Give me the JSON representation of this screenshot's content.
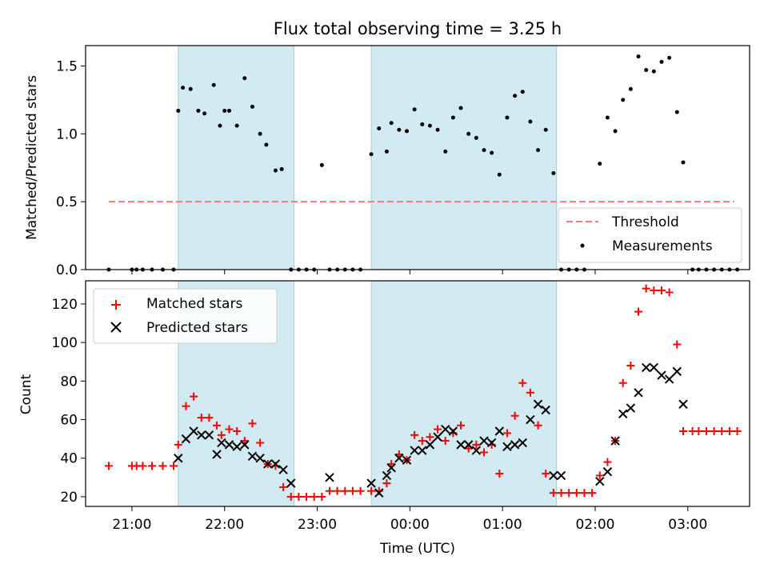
{
  "chart_data": {
    "title": "Flux total observing time = 3.25 h",
    "xlabel": "Time (UTC)",
    "x_ticks": [
      "21:00",
      "22:00",
      "23:00",
      "00:00",
      "01:00",
      "02:00",
      "03:00"
    ],
    "shaded_intervals": [
      [
        "21:30",
        "22:45"
      ],
      [
        "23:35",
        "01:35"
      ]
    ],
    "shade_color": "#add8e6",
    "top": {
      "type": "scatter",
      "ylabel": "Matched/Predicted stars",
      "ylim": [
        0,
        1.65
      ],
      "y_ticks": [
        "0.0",
        "0.5",
        "1.0",
        "1.5"
      ],
      "threshold": {
        "name": "Threshold",
        "value": 0.5,
        "x_range": [
          "20:45",
          "03:30"
        ],
        "color": "#ff7777"
      },
      "measurements": {
        "name": "Measurements",
        "color": "#000000",
        "points": [
          [
            "20:45",
            0.0
          ],
          [
            "21:00",
            0.0
          ],
          [
            "21:03",
            0.0
          ],
          [
            "21:07",
            0.0
          ],
          [
            "21:13",
            0.0
          ],
          [
            "21:20",
            0.0
          ],
          [
            "21:27",
            0.0
          ],
          [
            "21:30",
            1.17
          ],
          [
            "21:33",
            1.34
          ],
          [
            "21:38",
            1.33
          ],
          [
            "21:43",
            1.17
          ],
          [
            "21:47",
            1.15
          ],
          [
            "21:53",
            1.36
          ],
          [
            "21:57",
            1.06
          ],
          [
            "22:00",
            1.17
          ],
          [
            "22:03",
            1.17
          ],
          [
            "22:08",
            1.06
          ],
          [
            "22:13",
            1.41
          ],
          [
            "22:18",
            1.2
          ],
          [
            "22:23",
            1.0
          ],
          [
            "22:27",
            0.92
          ],
          [
            "22:33",
            0.73
          ],
          [
            "22:37",
            0.74
          ],
          [
            "22:43",
            0.0
          ],
          [
            "22:48",
            0.0
          ],
          [
            "22:53",
            0.0
          ],
          [
            "22:58",
            0.0
          ],
          [
            "23:03",
            0.77
          ],
          [
            "23:08",
            0.0
          ],
          [
            "23:13",
            0.0
          ],
          [
            "23:18",
            0.0
          ],
          [
            "23:23",
            0.0
          ],
          [
            "23:28",
            0.0
          ],
          [
            "23:35",
            0.85
          ],
          [
            "23:40",
            1.04
          ],
          [
            "23:45",
            0.87
          ],
          [
            "23:48",
            1.08
          ],
          [
            "23:53",
            1.03
          ],
          [
            "23:58",
            1.02
          ],
          [
            "00:03",
            1.18
          ],
          [
            "00:08",
            1.07
          ],
          [
            "00:13",
            1.06
          ],
          [
            "00:18",
            1.03
          ],
          [
            "00:23",
            0.87
          ],
          [
            "00:28",
            1.12
          ],
          [
            "00:33",
            1.19
          ],
          [
            "00:38",
            1.0
          ],
          [
            "00:43",
            0.97
          ],
          [
            "00:48",
            0.88
          ],
          [
            "00:53",
            0.86
          ],
          [
            "00:58",
            0.7
          ],
          [
            "01:03",
            1.12
          ],
          [
            "01:08",
            1.28
          ],
          [
            "01:13",
            1.31
          ],
          [
            "01:18",
            1.09
          ],
          [
            "01:23",
            0.88
          ],
          [
            "01:28",
            1.03
          ],
          [
            "01:33",
            0.71
          ],
          [
            "01:38",
            0.0
          ],
          [
            "01:43",
            0.0
          ],
          [
            "01:48",
            0.0
          ],
          [
            "01:53",
            0.0
          ],
          [
            "02:03",
            0.78
          ],
          [
            "02:08",
            1.12
          ],
          [
            "02:13",
            1.02
          ],
          [
            "02:18",
            1.25
          ],
          [
            "02:23",
            1.33
          ],
          [
            "02:28",
            1.57
          ],
          [
            "02:33",
            1.47
          ],
          [
            "02:38",
            1.46
          ],
          [
            "02:43",
            1.53
          ],
          [
            "02:48",
            1.56
          ],
          [
            "02:53",
            1.16
          ],
          [
            "02:57",
            0.79
          ],
          [
            "03:03",
            0.0
          ],
          [
            "03:07",
            0.0
          ],
          [
            "03:12",
            0.0
          ],
          [
            "03:17",
            0.0
          ],
          [
            "03:22",
            0.0
          ],
          [
            "03:27",
            0.0
          ],
          [
            "03:32",
            0.0
          ]
        ]
      },
      "legend_position": "lower-right"
    },
    "bottom": {
      "type": "scatter",
      "ylabel": "Count",
      "ylim": [
        15,
        132
      ],
      "y_ticks": [
        "20",
        "40",
        "60",
        "80",
        "100",
        "120"
      ],
      "legend_position": "upper-left",
      "series": [
        {
          "name": "Matched stars",
          "marker": "plus",
          "color": "#ff0000",
          "points": [
            [
              "20:45",
              36
            ],
            [
              "21:00",
              36
            ],
            [
              "21:03",
              36
            ],
            [
              "21:07",
              36
            ],
            [
              "21:13",
              36
            ],
            [
              "21:20",
              36
            ],
            [
              "21:27",
              36
            ],
            [
              "21:30",
              47
            ],
            [
              "21:35",
              67
            ],
            [
              "21:40",
              72
            ],
            [
              "21:45",
              61
            ],
            [
              "21:50",
              61
            ],
            [
              "21:55",
              57
            ],
            [
              "21:58",
              52
            ],
            [
              "22:03",
              55
            ],
            [
              "22:08",
              54
            ],
            [
              "22:13",
              49
            ],
            [
              "22:18",
              58
            ],
            [
              "22:23",
              48
            ],
            [
              "22:28",
              37
            ],
            [
              "22:33",
              36
            ],
            [
              "22:38",
              25
            ],
            [
              "22:43",
              20
            ],
            [
              "22:48",
              20
            ],
            [
              "22:53",
              20
            ],
            [
              "22:58",
              20
            ],
            [
              "23:03",
              20
            ],
            [
              "23:08",
              23
            ],
            [
              "23:13",
              23
            ],
            [
              "23:18",
              23
            ],
            [
              "23:23",
              23
            ],
            [
              "23:28",
              23
            ],
            [
              "23:35",
              23
            ],
            [
              "23:40",
              23
            ],
            [
              "23:45",
              27
            ],
            [
              "23:48",
              37
            ],
            [
              "23:53",
              42
            ],
            [
              "23:58",
              39
            ],
            [
              "00:03",
              52
            ],
            [
              "00:08",
              49
            ],
            [
              "00:13",
              51
            ],
            [
              "00:18",
              55
            ],
            [
              "00:23",
              49
            ],
            [
              "00:28",
              53
            ],
            [
              "00:33",
              57
            ],
            [
              "00:38",
              45
            ],
            [
              "00:43",
              47
            ],
            [
              "00:48",
              43
            ],
            [
              "00:53",
              47
            ],
            [
              "00:58",
              32
            ],
            [
              "01:03",
              53
            ],
            [
              "01:08",
              62
            ],
            [
              "01:13",
              79
            ],
            [
              "01:18",
              74
            ],
            [
              "01:23",
              57
            ],
            [
              "01:28",
              32
            ],
            [
              "01:33",
              22
            ],
            [
              "01:38",
              22
            ],
            [
              "01:43",
              22
            ],
            [
              "01:48",
              22
            ],
            [
              "01:53",
              22
            ],
            [
              "01:58",
              22
            ],
            [
              "02:03",
              31
            ],
            [
              "02:08",
              38
            ],
            [
              "02:13",
              49
            ],
            [
              "02:18",
              79
            ],
            [
              "02:23",
              88
            ],
            [
              "02:28",
              116
            ],
            [
              "02:33",
              128
            ],
            [
              "02:38",
              127
            ],
            [
              "02:43",
              127
            ],
            [
              "02:48",
              126
            ],
            [
              "02:53",
              99
            ],
            [
              "02:57",
              54
            ],
            [
              "03:03",
              54
            ],
            [
              "03:07",
              54
            ],
            [
              "03:12",
              54
            ],
            [
              "03:17",
              54
            ],
            [
              "03:22",
              54
            ],
            [
              "03:27",
              54
            ],
            [
              "03:32",
              54
            ]
          ]
        },
        {
          "name": "Predicted stars",
          "marker": "x",
          "color": "#000000",
          "points": [
            [
              "21:30",
              40
            ],
            [
              "21:35",
              50
            ],
            [
              "21:40",
              54
            ],
            [
              "21:45",
              52
            ],
            [
              "21:50",
              52
            ],
            [
              "21:55",
              42
            ],
            [
              "21:58",
              48
            ],
            [
              "22:03",
              47
            ],
            [
              "22:08",
              46
            ],
            [
              "22:13",
              47
            ],
            [
              "22:18",
              41
            ],
            [
              "22:23",
              40
            ],
            [
              "22:28",
              37
            ],
            [
              "22:33",
              37
            ],
            [
              "22:38",
              34
            ],
            [
              "22:43",
              27
            ],
            [
              "23:08",
              30
            ],
            [
              "23:35",
              27
            ],
            [
              "23:40",
              22
            ],
            [
              "23:45",
              31
            ],
            [
              "23:48",
              35
            ],
            [
              "23:53",
              40
            ],
            [
              "23:58",
              39
            ],
            [
              "00:03",
              44
            ],
            [
              "00:08",
              44
            ],
            [
              "00:13",
              47
            ],
            [
              "00:18",
              51
            ],
            [
              "00:23",
              55
            ],
            [
              "00:28",
              54
            ],
            [
              "00:33",
              47
            ],
            [
              "00:38",
              47
            ],
            [
              "00:43",
              44
            ],
            [
              "00:48",
              49
            ],
            [
              "00:53",
              48
            ],
            [
              "00:58",
              54
            ],
            [
              "01:03",
              46
            ],
            [
              "01:08",
              47
            ],
            [
              "01:13",
              48
            ],
            [
              "01:18",
              60
            ],
            [
              "01:23",
              68
            ],
            [
              "01:28",
              65
            ],
            [
              "01:33",
              31
            ],
            [
              "01:38",
              31
            ],
            [
              "02:03",
              28
            ],
            [
              "02:08",
              33
            ],
            [
              "02:13",
              49
            ],
            [
              "02:18",
              63
            ],
            [
              "02:23",
              66
            ],
            [
              "02:28",
              74
            ],
            [
              "02:33",
              87
            ],
            [
              "02:38",
              87
            ],
            [
              "02:43",
              83
            ],
            [
              "02:48",
              81
            ],
            [
              "02:53",
              85
            ],
            [
              "02:57",
              68
            ]
          ]
        }
      ]
    }
  }
}
